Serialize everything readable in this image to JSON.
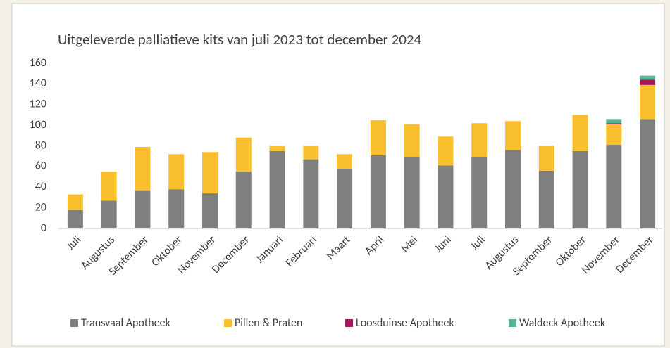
{
  "chart_data": {
    "type": "stacked_bar",
    "title": "Uitgeleverde palliatieve kits van juli 2023 tot december 2024",
    "categories": [
      "Juli",
      "Augustus",
      "September",
      "Oktober",
      "November",
      "December",
      "Januari",
      "Februari",
      "Maart",
      "April",
      "Mei",
      "Juni",
      "Juli",
      "Augustus",
      "September",
      "Oktober",
      "November",
      "December"
    ],
    "series": [
      {
        "name": "Transvaal Apotheek",
        "color": "#7f7f7f",
        "values": [
          18,
          27,
          37,
          38,
          34,
          55,
          75,
          67,
          58,
          71,
          69,
          61,
          69,
          76,
          56,
          75,
          81,
          106
        ]
      },
      {
        "name": "Pillen & Praten",
        "color": "#f9bf2c",
        "values": [
          15,
          28,
          42,
          34,
          40,
          33,
          5,
          13,
          14,
          34,
          32,
          28,
          33,
          28,
          24,
          35,
          20,
          33
        ]
      },
      {
        "name": "Loosduinse Apotheek",
        "color": "#a3195b",
        "values": [
          0,
          0,
          0,
          0,
          0,
          0,
          0,
          0,
          0,
          0,
          0,
          0,
          0,
          0,
          0,
          0,
          1,
          5
        ]
      },
      {
        "name": "Waldeck Apotheek",
        "color": "#5ab596",
        "values": [
          0,
          0,
          0,
          0,
          0,
          0,
          0,
          0,
          0,
          0,
          0,
          0,
          0,
          0,
          0,
          0,
          4,
          4
        ]
      }
    ],
    "ylim": [
      0,
      160
    ],
    "yticks": [
      0,
      20,
      40,
      60,
      80,
      100,
      120,
      140,
      160
    ],
    "grid": false,
    "legend": "bottom"
  }
}
